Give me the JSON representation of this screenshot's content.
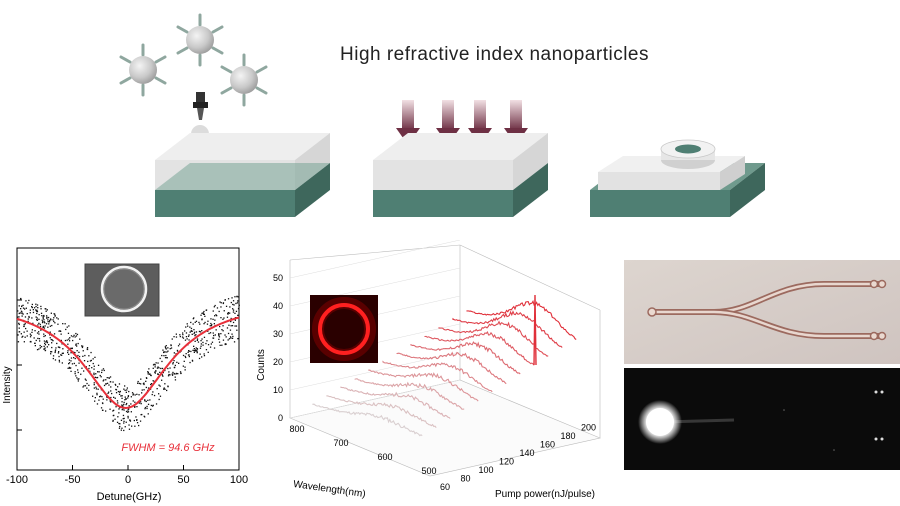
{
  "header": {
    "title": "High refractive index nanoparticles"
  },
  "transmission_plot": {
    "xlabel": "Detune(GHz)",
    "ylabel": "Intensity",
    "xticks": [
      "-100",
      "-50",
      "0",
      "50",
      "100"
    ],
    "annotation": "FWHM = 94.6 GHz",
    "colors": {
      "fit": "#e8303a",
      "data": "#111111",
      "annotation": "#e8303a"
    }
  },
  "lasing_plot": {
    "zlabel": "Counts",
    "ylabel": "Wavelength(nm)",
    "xlabel": "Pump power(nJ/pulse)",
    "zticks": [
      "0",
      "10",
      "20",
      "30",
      "40",
      "50"
    ],
    "yticks": [
      "800",
      "700",
      "600",
      "500"
    ],
    "xticks": [
      "60",
      "80",
      "100",
      "120",
      "140",
      "160",
      "180",
      "200"
    ],
    "colors": {
      "low": "#d9cfd0",
      "high": "#e0303a"
    }
  },
  "colors": {
    "substrate": "#4f7f73",
    "slab": "#e6e6e6",
    "arrow": "#7a3b4d",
    "particle": "#c8c8c8",
    "ligand": "#8fa79f"
  }
}
